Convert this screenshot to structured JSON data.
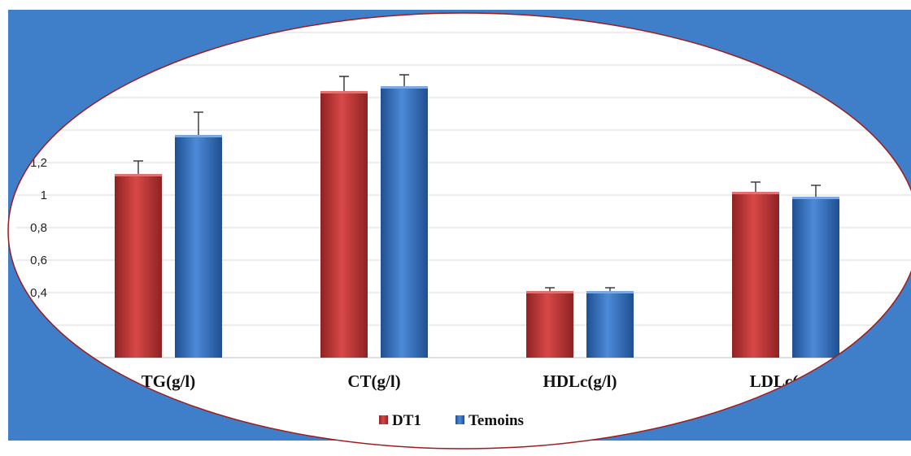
{
  "chart_data": {
    "type": "bar",
    "title": "",
    "xlabel": "",
    "ylabel": "",
    "categories": [
      "TG(g/l)",
      "CT(g/l)",
      "HDLc(g/l)",
      "LDLc(g/l)"
    ],
    "series": [
      {
        "name": "DT1",
        "values": [
          1.13,
          1.64,
          0.41,
          1.02
        ],
        "errors": [
          0.08,
          0.09,
          0.02,
          0.06
        ],
        "color": "#c94040"
      },
      {
        "name": "Temoins",
        "values": [
          1.37,
          1.67,
          0.41,
          0.99
        ],
        "errors": [
          0.14,
          0.07,
          0.02,
          0.07
        ],
        "color": "#3d78c8"
      }
    ],
    "yticks": [
      0,
      0.2,
      0.4,
      0.6,
      0.8,
      1,
      1.2,
      1.4,
      1.6,
      1.8,
      2
    ],
    "ytick_labels": [
      "",
      "",
      "0,4",
      "0,6",
      "0,8",
      "1",
      "1,2",
      "",
      "",
      "",
      ""
    ],
    "ylim": [
      0.2,
      2.2
    ],
    "grid": true,
    "legend_position": "bottom",
    "colors": {
      "frame_fill": "#3f7fc9",
      "ellipse_stroke": "#a01a1a",
      "grid": "#d9d9d9"
    }
  }
}
